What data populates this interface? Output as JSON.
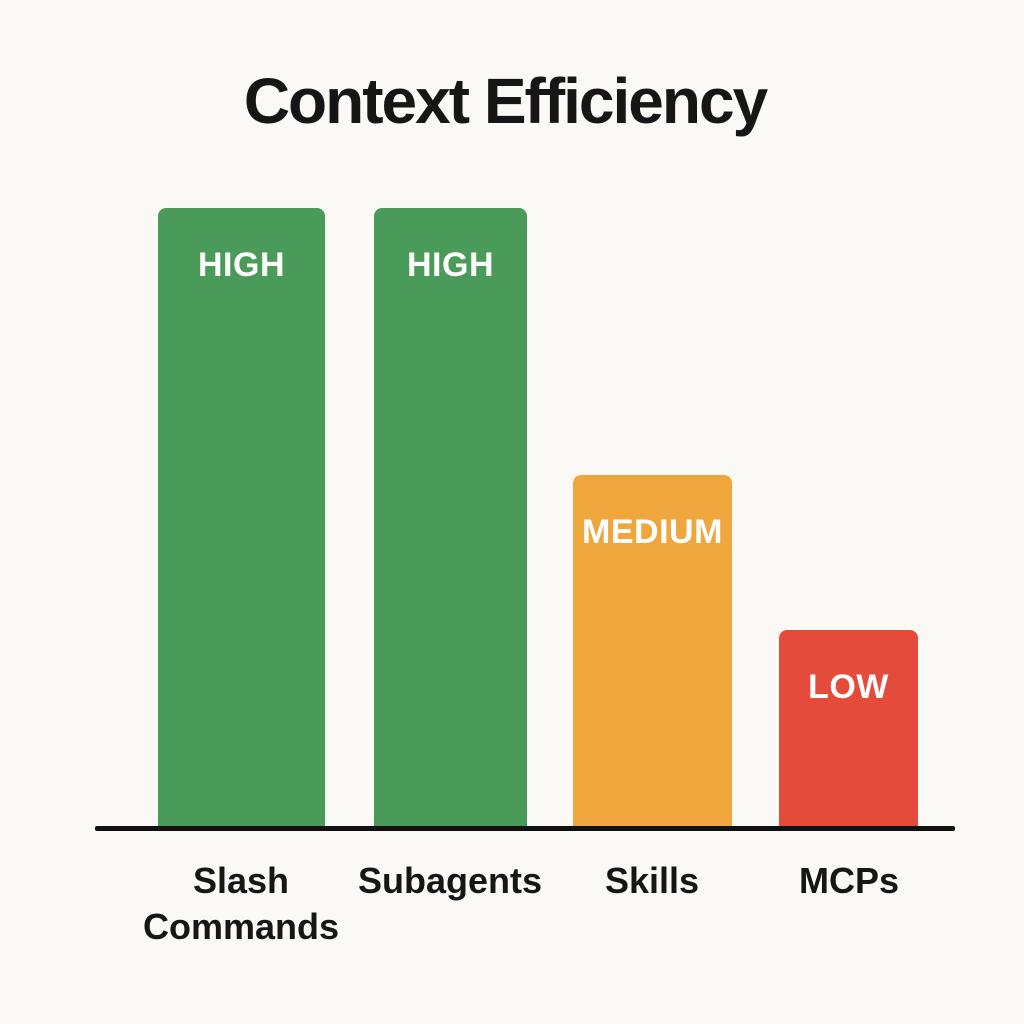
{
  "title": "Context Efficiency",
  "colors": {
    "background": "#faf9f6",
    "high_green": "#4a9b59",
    "medium_orange": "#efa73d",
    "low_red": "#e54b3b",
    "axis_black": "#111111",
    "bar_label_white": "#ffffff",
    "text_dark": "#161616"
  },
  "chart_data": {
    "type": "bar",
    "title": "Context Efficiency",
    "categories": [
      "Slash Commands",
      "Subagents",
      "Skills",
      "MCPs"
    ],
    "values": [
      "HIGH",
      "HIGH",
      "MEDIUM",
      "LOW"
    ],
    "series": [
      {
        "name": "Context Efficiency",
        "values": [
          100,
          100,
          57,
          32
        ]
      }
    ],
    "ylim": [
      0,
      100
    ],
    "grid": false,
    "legend": "none",
    "xlabel": "",
    "ylabel": "",
    "bars": [
      {
        "category": "Slash Commands",
        "level": "HIGH",
        "height_pct": 100,
        "color": "#4a9b59"
      },
      {
        "category": "Subagents",
        "level": "HIGH",
        "height_pct": 100,
        "color": "#4a9b59"
      },
      {
        "category": "Skills",
        "level": "MEDIUM",
        "height_pct": 57,
        "color": "#efa73d"
      },
      {
        "category": "MCPs",
        "level": "LOW",
        "height_pct": 32,
        "color": "#e54b3b"
      }
    ]
  }
}
